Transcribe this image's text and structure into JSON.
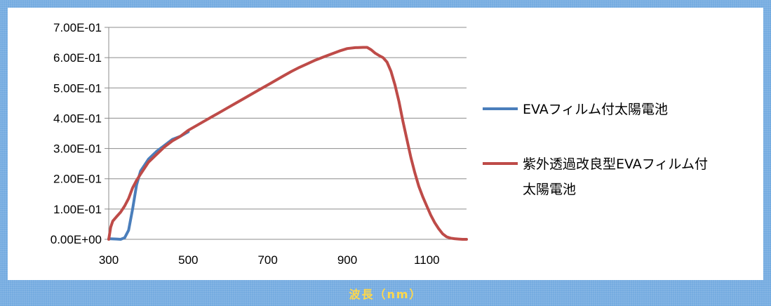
{
  "colors": {
    "frame": "#74abe0",
    "panel": "#ffffff",
    "grid": "#8c8c8c",
    "axis_title": "#ffd84a"
  },
  "chart_data": {
    "type": "line",
    "title": "",
    "xlabel": "波長（nm）",
    "ylabel": "",
    "xlim": [
      300,
      1200
    ],
    "ylim": [
      0,
      0.7
    ],
    "x_ticks": [
      "300",
      "500",
      "700",
      "900",
      "1100"
    ],
    "y_ticks": [
      "0.00E+00",
      "1.00E-01",
      "2.00E-01",
      "3.00E-01",
      "4.00E-01",
      "5.00E-01",
      "6.00E-01",
      "7.00E-01"
    ],
    "grid": true,
    "legend_position": "right",
    "series": [
      {
        "name": "EVAフィルム付太陽電池",
        "color": "#4a7ebb",
        "x": [
          300,
          320,
          330,
          340,
          350,
          360,
          370,
          380,
          390,
          400,
          420,
          440,
          460,
          480,
          500
        ],
        "y": [
          0.002,
          0.001,
          0.0,
          0.005,
          0.03,
          0.1,
          0.18,
          0.225,
          0.245,
          0.265,
          0.29,
          0.31,
          0.33,
          0.34,
          0.355
        ]
      },
      {
        "name": "紫外透過改良型EVAフィルム付太陽電池",
        "color": "#be4b48",
        "x": [
          300,
          305,
          310,
          320,
          330,
          340,
          350,
          360,
          370,
          380,
          390,
          400,
          420,
          440,
          460,
          480,
          500,
          520,
          540,
          560,
          580,
          600,
          620,
          640,
          660,
          680,
          700,
          720,
          740,
          760,
          780,
          800,
          820,
          840,
          860,
          880,
          900,
          920,
          940,
          950,
          960,
          970,
          980,
          990,
          1000,
          1010,
          1020,
          1030,
          1040,
          1050,
          1060,
          1070,
          1080,
          1090,
          1100,
          1110,
          1120,
          1130,
          1140,
          1150,
          1160,
          1170,
          1180,
          1190,
          1200
        ],
        "y": [
          0.0,
          0.04,
          0.06,
          0.075,
          0.09,
          0.11,
          0.135,
          0.17,
          0.195,
          0.215,
          0.235,
          0.255,
          0.28,
          0.305,
          0.325,
          0.34,
          0.36,
          0.375,
          0.39,
          0.405,
          0.42,
          0.435,
          0.45,
          0.465,
          0.48,
          0.495,
          0.51,
          0.525,
          0.54,
          0.555,
          0.568,
          0.58,
          0.592,
          0.602,
          0.612,
          0.622,
          0.63,
          0.633,
          0.634,
          0.634,
          0.626,
          0.615,
          0.607,
          0.6,
          0.585,
          0.555,
          0.51,
          0.455,
          0.39,
          0.33,
          0.27,
          0.22,
          0.175,
          0.14,
          0.11,
          0.08,
          0.055,
          0.035,
          0.018,
          0.008,
          0.004,
          0.002,
          0.001,
          0.0,
          0.0
        ]
      }
    ]
  }
}
